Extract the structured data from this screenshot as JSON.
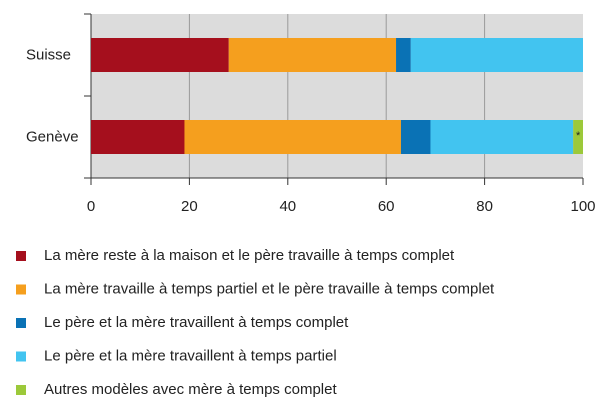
{
  "chart_data": {
    "type": "stacked-barh",
    "categories": [
      "Suisse",
      "Genève"
    ],
    "series": [
      {
        "name": "La mère reste à la maison et le père travaille à temps complet",
        "color": "#a50f1d",
        "values": [
          28,
          19
        ]
      },
      {
        "name": "La mère travaille à temps partiel et le père travaille à temps complet",
        "color": "#f59f1e",
        "values": [
          34,
          44
        ]
      },
      {
        "name": "Le père et la mère travaillent à temps complet",
        "color": "#0a72b5",
        "values": [
          3,
          6
        ]
      },
      {
        "name": "Le père et la mère travaillent à temps partiel",
        "color": "#42c4f0",
        "values": [
          35,
          29
        ]
      },
      {
        "name": "Autres modèles avec mère à temps complet",
        "color": "#9cc93a",
        "values": [
          0,
          2
        ]
      }
    ],
    "annotation": "*",
    "xlim": [
      0,
      100
    ],
    "xticks": [
      0,
      20,
      40,
      60,
      80,
      100
    ],
    "grid": true
  }
}
